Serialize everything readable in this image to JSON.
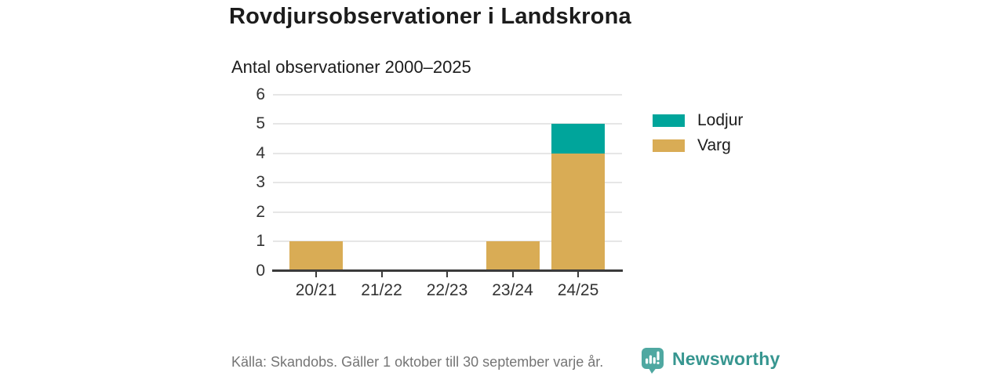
{
  "header": {
    "title": "Rovdjursobservationer i Landskrona",
    "subtitle": "Antal observationer 2000–2025"
  },
  "chart_data": {
    "type": "bar",
    "stacked": true,
    "title": "Rovdjursobservationer i Landskrona",
    "subtitle": "Antal observationer 2000–2025",
    "categories": [
      "20/21",
      "21/22",
      "22/23",
      "23/24",
      "24/25"
    ],
    "series": [
      {
        "name": "Varg",
        "color": "#d9ac55",
        "values": [
          1,
          0,
          0,
          1,
          4
        ]
      },
      {
        "name": "Lodjur",
        "color": "#00a59b",
        "values": [
          0,
          0,
          0,
          0,
          1
        ]
      }
    ],
    "legend": [
      {
        "label": "Lodjur",
        "color": "#00a59b"
      },
      {
        "label": "Varg",
        "color": "#d9ac55"
      }
    ],
    "legend_position": "right",
    "xlabel": "",
    "ylabel": "",
    "ylim": [
      0,
      6
    ],
    "yticks": [
      0,
      1,
      2,
      3,
      4,
      5,
      6
    ],
    "grid": true
  },
  "colors": {
    "lodjur": "#00a59b",
    "varg": "#d9ac55",
    "grid": "#e6e6e6",
    "axis": "#3b3b3b",
    "text": "#1c1c1c",
    "muted_text": "#757575",
    "brand_teal": "#379690",
    "logo_bubble": "#4fa8a1"
  },
  "footer": {
    "source": "Källa: Skandobs. Gäller 1 oktober till 30 september varje år.",
    "brand": "Newsworthy"
  }
}
